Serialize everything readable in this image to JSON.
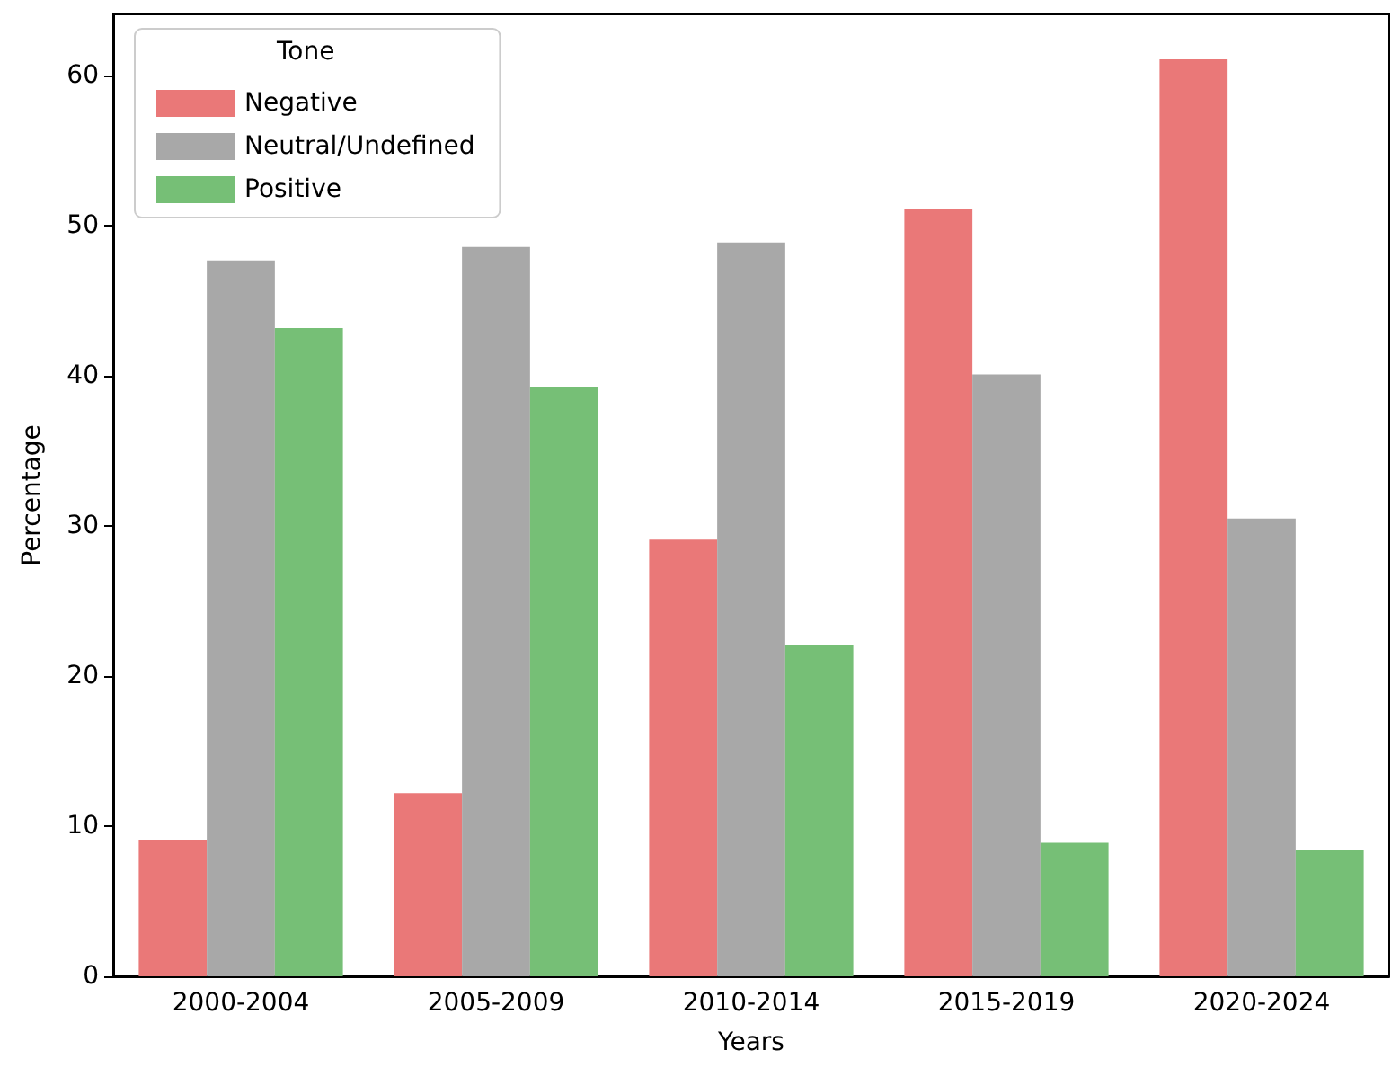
{
  "chart_data": {
    "type": "bar",
    "xlabel": "Years",
    "ylabel": "Percentage",
    "legend_title": "Tone",
    "legend": "top left",
    "grid": false,
    "categories": [
      "2000-2004",
      "2005-2009",
      "2010-2014",
      "2015-2019",
      "2020-2024"
    ],
    "ylim": [
      0,
      64.1
    ],
    "yticks": [
      0,
      10,
      20,
      30,
      40,
      50,
      60
    ],
    "series": [
      {
        "name": "Negative",
        "color": "#ea7878",
        "values": [
          9.1,
          12.2,
          29.1,
          51.1,
          61.1
        ]
      },
      {
        "name": "Neutral/Undefined",
        "color": "#a8a8a8",
        "values": [
          47.7,
          48.6,
          48.9,
          40.1,
          30.5
        ]
      },
      {
        "name": "Positive",
        "color": "#76bf76",
        "values": [
          43.2,
          39.3,
          22.1,
          8.9,
          8.4
        ]
      }
    ]
  }
}
